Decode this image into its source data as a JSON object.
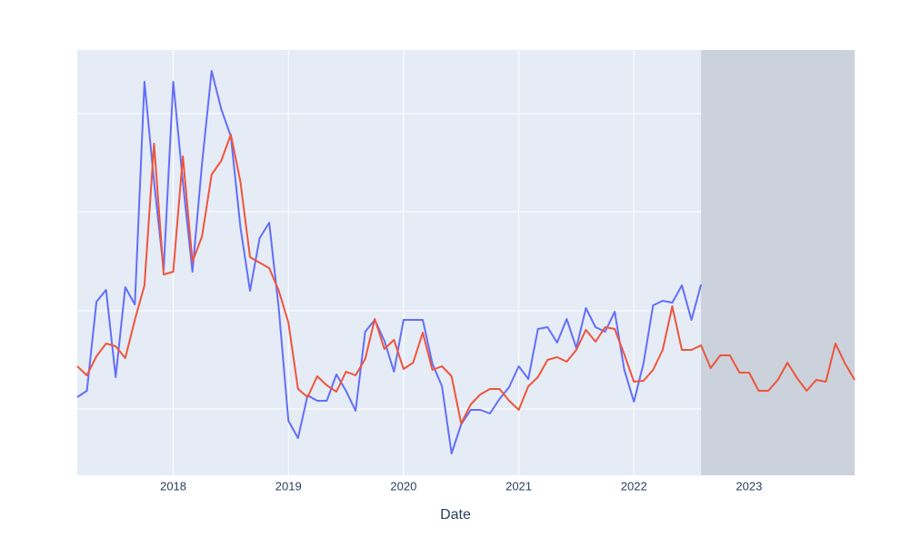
{
  "chart_data": {
    "type": "line",
    "xlabel": "Date",
    "x": [
      "2017-03",
      "2017-04",
      "2017-05",
      "2017-06",
      "2017-07",
      "2017-08",
      "2017-09",
      "2017-10",
      "2017-11",
      "2017-12",
      "2018-01",
      "2018-02",
      "2018-03",
      "2018-04",
      "2018-05",
      "2018-06",
      "2018-07",
      "2018-08",
      "2018-09",
      "2018-10",
      "2018-11",
      "2018-12",
      "2019-01",
      "2019-02",
      "2019-03",
      "2019-04",
      "2019-05",
      "2019-06",
      "2019-07",
      "2019-08",
      "2019-09",
      "2019-10",
      "2019-11",
      "2019-12",
      "2020-01",
      "2020-02",
      "2020-03",
      "2020-04",
      "2020-05",
      "2020-06",
      "2020-07",
      "2020-08",
      "2020-09",
      "2020-10",
      "2020-11",
      "2020-12",
      "2021-01",
      "2021-02",
      "2021-03",
      "2021-04",
      "2021-05",
      "2021-06",
      "2021-07",
      "2021-08",
      "2021-09",
      "2021-10",
      "2021-11",
      "2021-12",
      "2022-01",
      "2022-02",
      "2022-03",
      "2022-04",
      "2022-05",
      "2022-06",
      "2022-07",
      "2022-08",
      "2022-09",
      "2022-10",
      "2022-11",
      "2022-12",
      "2023-01",
      "2023-02",
      "2023-03",
      "2023-04",
      "2023-05",
      "2023-06",
      "2023-07",
      "2023-08",
      "2023-09",
      "2023-10",
      "2023-11",
      "2023-12"
    ],
    "series": [
      {
        "color": "#636efa",
        "values": [
          86,
          93,
          191,
          204,
          108,
          207,
          188,
          433,
          323,
          226,
          433,
          323,
          224,
          343,
          445,
          403,
          373,
          273,
          203,
          261,
          278,
          183,
          60,
          41,
          88,
          82,
          82,
          111,
          93,
          71,
          158,
          171,
          148,
          114,
          171,
          171,
          171,
          123,
          98,
          24,
          56,
          72,
          72,
          68,
          84,
          97,
          120,
          106,
          161,
          163,
          146,
          172,
          140,
          184,
          163,
          158,
          180,
          116,
          81,
          123,
          187,
          192,
          190,
          209,
          171,
          210,
          null,
          null,
          null,
          null,
          null,
          null,
          null,
          null,
          null,
          null,
          null,
          null,
          null,
          null,
          null,
          null
        ]
      },
      {
        "color": "#ef553b",
        "values": [
          120,
          110,
          131,
          145,
          142,
          129,
          171,
          209,
          365,
          221,
          224,
          351,
          235,
          263,
          331,
          346,
          375,
          323,
          240,
          234,
          228,
          203,
          168,
          95,
          86,
          109,
          99,
          92,
          114,
          110,
          128,
          172,
          139,
          149,
          117,
          124,
          157,
          116,
          120,
          109,
          57,
          78,
          89,
          95,
          95,
          82,
          72,
          98,
          108,
          127,
          130,
          125,
          138,
          160,
          147,
          163,
          161,
          133,
          103,
          104,
          116,
          138,
          186,
          138,
          138,
          143,
          118,
          132,
          132,
          113,
          113,
          93,
          93,
          105,
          124,
          107,
          93,
          105,
          103,
          145,
          123,
          105
        ]
      }
    ],
    "xlim": [
      "2017-03",
      "2023-12"
    ],
    "xticks": [
      {
        "value": "2018-01",
        "label": "2018"
      },
      {
        "value": "2019-01",
        "label": "2019"
      },
      {
        "value": "2020-01",
        "label": "2020"
      },
      {
        "value": "2021-01",
        "label": "2021"
      },
      {
        "value": "2022-01",
        "label": "2022"
      },
      {
        "value": "2023-01",
        "label": "2023"
      }
    ],
    "ylim": [
      0,
      468
    ],
    "yticks": [
      73,
      181,
      290,
      398
    ],
    "grid": true,
    "plot_background": "#e5ecf6",
    "shaded_region": {
      "x": [
        "2022-08",
        "2023-12"
      ],
      "color": "#cbd2dc"
    }
  }
}
